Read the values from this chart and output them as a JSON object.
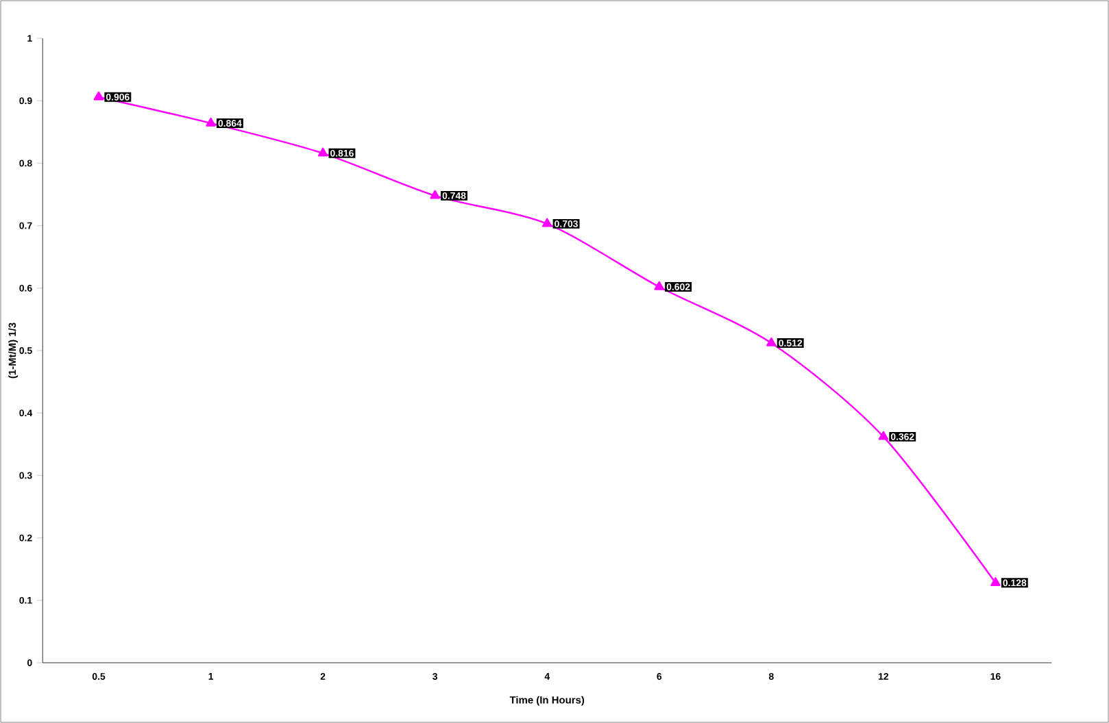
{
  "chart_data": {
    "type": "line",
    "xlabel": "Time (In Hours)",
    "ylabel": "(1-Mt/M) 1/3",
    "categories": [
      "0.5",
      "1",
      "2",
      "3",
      "4",
      "6",
      "8",
      "12",
      "16"
    ],
    "series": [
      {
        "color": "#ff00ff",
        "values": [
          0.906,
          0.864,
          0.816,
          0.748,
          0.703,
          0.602,
          0.512,
          0.362,
          0.128
        ]
      }
    ],
    "ylim": [
      0,
      1
    ],
    "yticks": [
      0,
      0.1,
      0.2,
      0.3,
      0.4,
      0.5,
      0.6,
      0.7,
      0.8,
      0.9,
      1
    ],
    "marker": "triangle",
    "data_labels": true,
    "grid": false
  }
}
